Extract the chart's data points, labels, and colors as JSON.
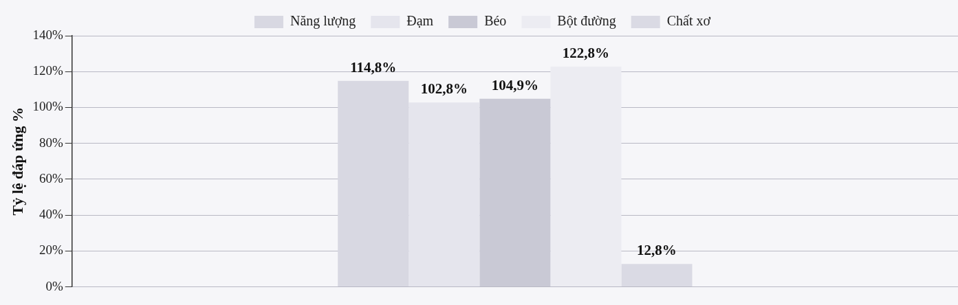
{
  "chart_data": {
    "type": "bar",
    "ylabel": "Tỷ lệ đáp ứng %",
    "categories": [
      null
    ],
    "series": [
      {
        "name": "Năng lượng",
        "color": "#d8d8e2",
        "values": [
          114.8
        ],
        "value_labels": [
          "114,8%"
        ]
      },
      {
        "name": "Đạm",
        "color": "#e5e5ed",
        "values": [
          102.8
        ],
        "value_labels": [
          "102,8%"
        ]
      },
      {
        "name": "Béo",
        "color": "#c9c9d5",
        "values": [
          104.9
        ],
        "value_labels": [
          "104,9%"
        ]
      },
      {
        "name": "Bột đường",
        "color": "#ececf2",
        "values": [
          122.8
        ],
        "value_labels": [
          "122,8%"
        ]
      },
      {
        "name": "Chất xơ",
        "color": "#dadae4",
        "values": [
          12.8
        ],
        "value_labels": [
          "12,8%"
        ]
      }
    ],
    "ylim": [
      0,
      140
    ],
    "yticks": [
      {
        "value": 0,
        "label": "0%"
      },
      {
        "value": 20,
        "label": "20%"
      },
      {
        "value": 40,
        "label": "40%"
      },
      {
        "value": 60,
        "label": "60%"
      },
      {
        "value": 80,
        "label": "80%"
      },
      {
        "value": 100,
        "label": "100%"
      },
      {
        "value": 120,
        "label": "120%"
      },
      {
        "value": 140,
        "label": "140%"
      }
    ],
    "grid": "y",
    "legend": "top"
  }
}
